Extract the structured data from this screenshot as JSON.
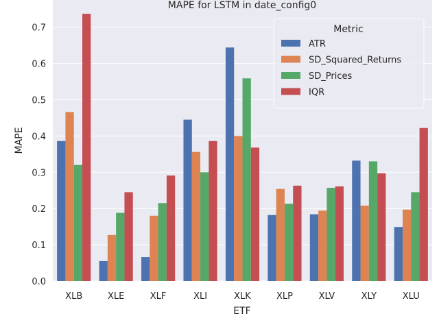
{
  "chart_data": {
    "type": "bar",
    "title": "MAPE for LSTM in date_config0",
    "xlabel": "ETF",
    "ylabel": "MAPE",
    "ylim": [
      0,
      0.775
    ],
    "yticks": [
      0.0,
      0.1,
      0.2,
      0.3,
      0.4,
      0.5,
      0.6,
      0.7
    ],
    "grid": true,
    "legend": {
      "title": "Metric",
      "placement": "top-right"
    },
    "categories": [
      "XLB",
      "XLE",
      "XLF",
      "XLI",
      "XLK",
      "XLP",
      "XLV",
      "XLY",
      "XLU"
    ],
    "series": [
      {
        "name": "ATR",
        "color": "#4c72b0",
        "values": [
          0.386,
          0.055,
          0.066,
          0.445,
          0.644,
          0.182,
          0.184,
          0.332,
          0.149
        ]
      },
      {
        "name": "SD_Squared_Returns",
        "color": "#dd8452",
        "values": [
          0.466,
          0.127,
          0.18,
          0.356,
          0.4,
          0.254,
          0.194,
          0.208,
          0.197
        ]
      },
      {
        "name": "SD_Prices",
        "color": "#55a868",
        "values": [
          0.32,
          0.188,
          0.215,
          0.3,
          0.559,
          0.213,
          0.257,
          0.33,
          0.245
        ]
      },
      {
        "name": "IQR",
        "color": "#c44e52",
        "values": [
          0.737,
          0.245,
          0.291,
          0.386,
          0.368,
          0.263,
          0.261,
          0.297,
          0.422
        ]
      }
    ]
  }
}
